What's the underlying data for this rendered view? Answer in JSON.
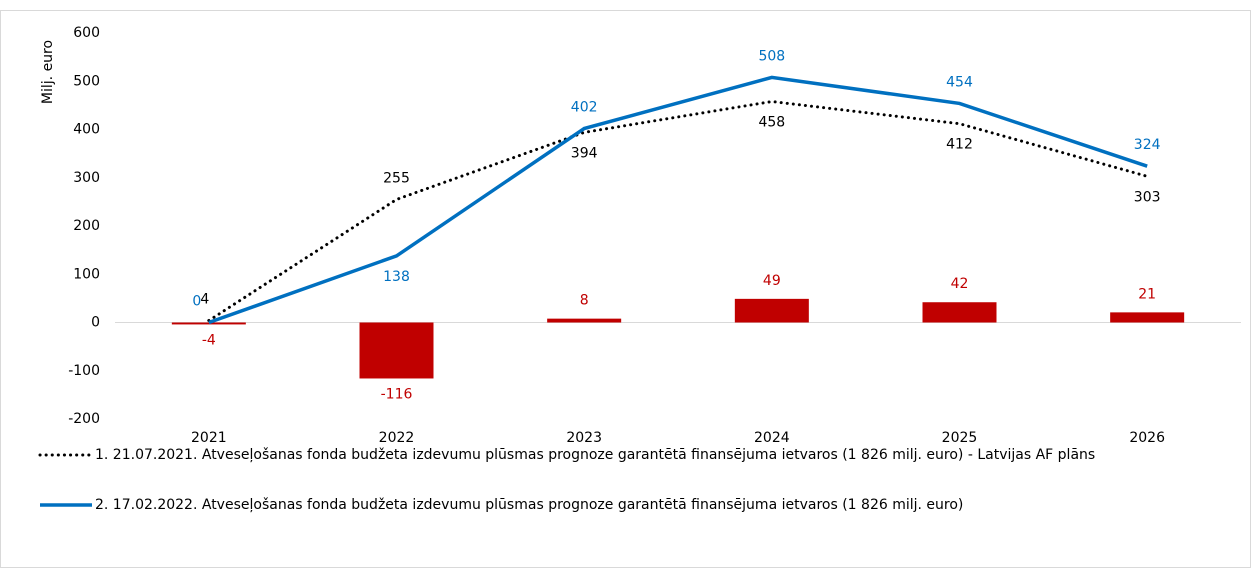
{
  "chart_data": {
    "type": "combo",
    "y_label": "Milj. euro",
    "categories": [
      "2021",
      "2022",
      "2023",
      "2024",
      "2025",
      "2026"
    ],
    "ylim": [
      -200,
      600
    ],
    "yticks": [
      -200,
      -100,
      0,
      100,
      200,
      300,
      400,
      500,
      600
    ],
    "series": [
      {
        "type": "line",
        "style": "dotted",
        "name": "1. 21.07.2021. Atveseļošanas fonda budžeta izdevumu plūsmas prognoze garantētā finansējuma ietvaros (1 826 milj. euro) - Latvijas AF plāns",
        "color": "#000000",
        "values": [
          4,
          255,
          394,
          458,
          412,
          303
        ]
      },
      {
        "type": "line",
        "style": "solid",
        "name": "2. 17.02.2022. Atveseļošanas fonda budžeta izdevumu plūsmas prognoze garantētā finansējuma ietvaros (1 826 milj. euro)",
        "color": "#0070c0",
        "values": [
          0,
          138,
          402,
          508,
          454,
          324
        ]
      },
      {
        "type": "bar",
        "color": "#c00000",
        "values": [
          -4,
          -116,
          8,
          49,
          42,
          21
        ]
      }
    ]
  }
}
